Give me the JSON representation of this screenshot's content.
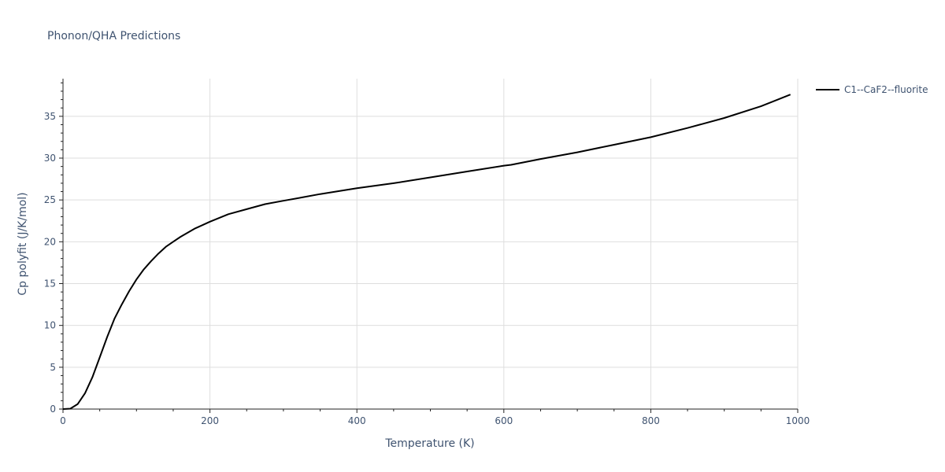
{
  "chart_data": {
    "type": "line",
    "title": "Phonon/QHA Predictions",
    "xlabel": "Temperature (K)",
    "ylabel": "Cp polyfit (J/K/mol)",
    "xlim": [
      0,
      1000
    ],
    "ylim": [
      0,
      39.5
    ],
    "x_ticks": [
      0,
      200,
      400,
      600,
      800,
      1000
    ],
    "y_ticks": [
      0,
      5,
      10,
      15,
      20,
      25,
      30,
      35
    ],
    "x_tick_labels": [
      "0",
      "200",
      "400",
      "600",
      "800",
      "1000"
    ],
    "y_tick_labels": [
      "0",
      "5",
      "10",
      "15",
      "20",
      "25",
      "30",
      "35"
    ],
    "grid": true,
    "legend_position": "top-right",
    "series": [
      {
        "name": "C1--CaF2--fluorite",
        "color": "#000000",
        "x": [
          0,
          10,
          20,
          30,
          40,
          50,
          60,
          70,
          80,
          90,
          100,
          110,
          120,
          130,
          140,
          150,
          160,
          170,
          180,
          190,
          200,
          225,
          250,
          275,
          300,
          325,
          350,
          400,
          450,
          500,
          550,
          600,
          610,
          650,
          700,
          750,
          800,
          850,
          900,
          950,
          990
        ],
        "y": [
          0,
          0.05,
          0.6,
          1.9,
          3.8,
          6.2,
          8.6,
          10.8,
          12.5,
          14.1,
          15.5,
          16.7,
          17.7,
          18.6,
          19.4,
          20.0,
          20.6,
          21.1,
          21.6,
          22.0,
          22.4,
          23.3,
          23.9,
          24.5,
          24.9,
          25.3,
          25.7,
          26.4,
          27.0,
          27.7,
          28.4,
          29.1,
          29.2,
          29.9,
          30.7,
          31.6,
          32.5,
          33.6,
          34.8,
          36.2,
          37.6
        ]
      }
    ]
  }
}
